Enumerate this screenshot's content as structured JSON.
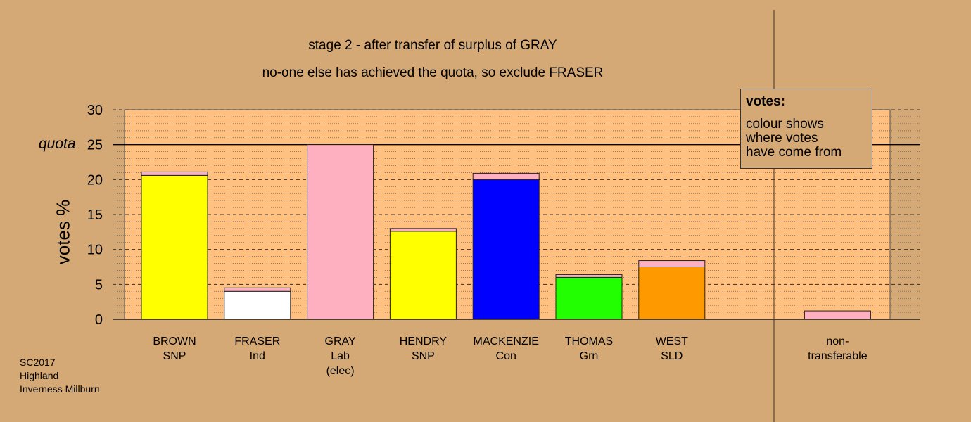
{
  "titles": {
    "line1": "stage 2 - after transfer of surplus of GRAY",
    "line2": "no-one else has achieved the quota, so exclude FRASER"
  },
  "legend": {
    "title": "votes:",
    "lines": [
      "colour shows",
      "where votes",
      "have come from"
    ]
  },
  "footer": {
    "lines": [
      "SC2017",
      "Highland",
      "Inverness Millburn"
    ]
  },
  "colors": {
    "background": "#d4a976",
    "plot_area": "#ffc080",
    "gray_transfer": "#ffb0c0"
  },
  "chart_data": {
    "type": "bar",
    "stacked": true,
    "ylabel": "votes %",
    "ylim": [
      0,
      30
    ],
    "yticks": [
      0,
      5,
      10,
      15,
      20,
      25,
      30
    ],
    "quota": {
      "label": "quota",
      "value": 25
    },
    "grid": true,
    "categories": [
      {
        "name": "BROWN",
        "party": "SNP"
      },
      {
        "name": "FRASER",
        "party": "Ind"
      },
      {
        "name": "GRAY",
        "party": "Lab",
        "note": "(elec)"
      },
      {
        "name": "HENDRY",
        "party": "SNP"
      },
      {
        "name": "MACKENZIE",
        "party": "Con"
      },
      {
        "name": "THOMAS",
        "party": "Grn"
      },
      {
        "name": "WEST",
        "party": "SLD"
      },
      {
        "name": "",
        "party": ""
      },
      {
        "name": "non-",
        "party": "transferable"
      }
    ],
    "bars": [
      {
        "segments": [
          {
            "from": "BROWN",
            "value": 20.6,
            "color": "#ffff00"
          },
          {
            "from": "GRAY",
            "value": 0.5,
            "color": "#ffb0c0"
          }
        ]
      },
      {
        "segments": [
          {
            "from": "FRASER",
            "value": 4.0,
            "color": "#ffffff"
          },
          {
            "from": "GRAY",
            "value": 0.5,
            "color": "#ffb0c0"
          }
        ]
      },
      {
        "segments": [
          {
            "from": "GRAY",
            "value": 25.0,
            "color": "#ffb0c0"
          }
        ]
      },
      {
        "segments": [
          {
            "from": "HENDRY",
            "value": 12.6,
            "color": "#ffff00"
          },
          {
            "from": "GRAY",
            "value": 0.4,
            "color": "#ffb0c0"
          }
        ]
      },
      {
        "segments": [
          {
            "from": "MACKENZIE",
            "value": 20.0,
            "color": "#0000ff"
          },
          {
            "from": "GRAY",
            "value": 0.9,
            "color": "#ffb0c0"
          }
        ]
      },
      {
        "segments": [
          {
            "from": "THOMAS",
            "value": 6.0,
            "color": "#22ff00"
          },
          {
            "from": "GRAY",
            "value": 0.4,
            "color": "#ffb0c0"
          }
        ]
      },
      {
        "segments": [
          {
            "from": "WEST",
            "value": 7.5,
            "color": "#ff9900"
          },
          {
            "from": "GRAY",
            "value": 0.9,
            "color": "#ffb0c0"
          }
        ]
      },
      {
        "segments": []
      },
      {
        "segments": [
          {
            "from": "GRAY",
            "value": 1.2,
            "color": "#ffb0c0"
          }
        ]
      }
    ]
  }
}
